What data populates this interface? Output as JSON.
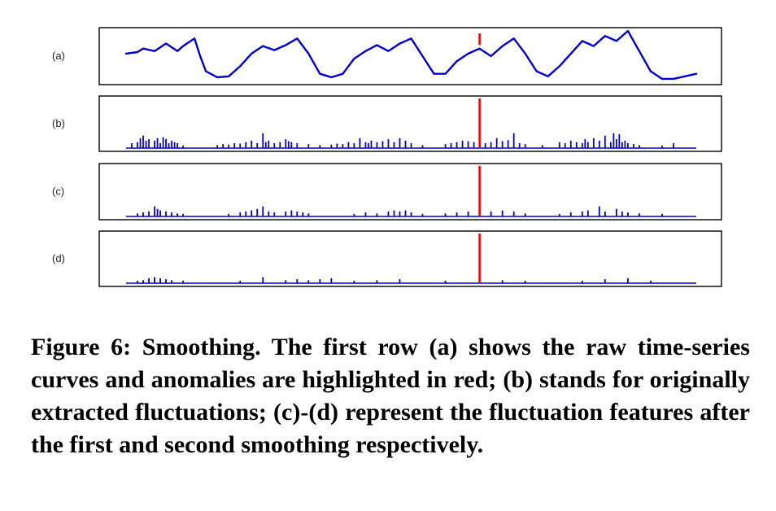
{
  "caption": "Figure 6: Smoothing. The first row (a) shows the raw time-series curves and anomalies are highlighted in red; (b) stands for originally extracted fluctuations; (c)-(d) represent the fluctuation features after the first and second smoothing respectively.",
  "colors": {
    "series": "#0000cc",
    "anomaly": "#ff0000",
    "frame": "#000000"
  },
  "chart_data": [
    {
      "type": "line",
      "panel_label": "(a)",
      "series": [
        {
          "x": [
            0,
            2,
            3,
            5,
            7,
            9,
            10,
            12,
            13,
            14,
            16,
            18,
            20,
            22,
            24,
            26,
            28,
            30,
            32,
            34,
            36,
            38,
            40,
            42,
            44,
            46,
            48,
            50,
            52,
            54,
            56,
            58,
            60,
            62,
            64,
            66,
            68,
            70,
            72,
            74,
            76,
            78,
            80,
            82,
            84,
            86,
            88,
            90,
            92,
            94,
            96,
            98,
            100
          ],
          "y": [
            0.55,
            0.58,
            0.65,
            0.6,
            0.75,
            0.6,
            0.7,
            0.85,
            0.5,
            0.2,
            0.08,
            0.1,
            0.3,
            0.55,
            0.7,
            0.62,
            0.72,
            0.85,
            0.55,
            0.15,
            0.08,
            0.15,
            0.45,
            0.6,
            0.72,
            0.6,
            0.75,
            0.85,
            0.5,
            0.15,
            0.15,
            0.4,
            0.55,
            0.65,
            0.5,
            0.7,
            0.85,
            0.55,
            0.2,
            0.1,
            0.3,
            0.55,
            0.8,
            0.7,
            0.9,
            0.8,
            1.0,
            0.6,
            0.2,
            0.05,
            0.05,
            0.1,
            0.15
          ]
        }
      ],
      "anomalies": [
        {
          "x": 62,
          "y": 0.95
        }
      ]
    },
    {
      "type": "bar",
      "panel_label": "(b)",
      "x": [
        1,
        2,
        2.5,
        3,
        3.5,
        4,
        5,
        5.5,
        6,
        6.5,
        7,
        7.5,
        8,
        8.5,
        9,
        10,
        16,
        17,
        18,
        19,
        20,
        21,
        22,
        23,
        24,
        24.5,
        25,
        26,
        27,
        28,
        28.5,
        29,
        30,
        32,
        34,
        36,
        37,
        38,
        39,
        40,
        41,
        42,
        42.5,
        43,
        44,
        45,
        46,
        47,
        48,
        49,
        50,
        52,
        56,
        57,
        58,
        59,
        60,
        61,
        62,
        63,
        64,
        65,
        66,
        67,
        68,
        69,
        70,
        73,
        76,
        77,
        78,
        79,
        80,
        80.5,
        81,
        82,
        83,
        84,
        85,
        85.5,
        86,
        86.5,
        87,
        87.5,
        88,
        89,
        90,
        94,
        96
      ],
      "values": [
        0.1,
        0.12,
        0.2,
        0.25,
        0.15,
        0.18,
        0.15,
        0.2,
        0.1,
        0.22,
        0.18,
        0.1,
        0.15,
        0.12,
        0.1,
        0.05,
        0.06,
        0.08,
        0.07,
        0.1,
        0.09,
        0.12,
        0.15,
        0.1,
        0.3,
        0.12,
        0.15,
        0.1,
        0.12,
        0.18,
        0.14,
        0.12,
        0.1,
        0.08,
        0.06,
        0.07,
        0.09,
        0.08,
        0.12,
        0.1,
        0.2,
        0.12,
        0.1,
        0.15,
        0.12,
        0.14,
        0.18,
        0.12,
        0.2,
        0.15,
        0.1,
        0.06,
        0.08,
        0.1,
        0.12,
        0.15,
        0.14,
        0.12,
        0.18,
        0.1,
        0.12,
        0.2,
        0.14,
        0.16,
        0.3,
        0.1,
        0.08,
        0.06,
        0.12,
        0.1,
        0.15,
        0.12,
        0.1,
        0.18,
        0.12,
        0.2,
        0.15,
        0.25,
        0.12,
        0.3,
        0.18,
        0.28,
        0.12,
        0.15,
        0.1,
        0.08,
        0.06,
        0.05,
        0.1
      ],
      "anomalies": [
        {
          "x": 62,
          "value": 1.0
        }
      ]
    },
    {
      "type": "bar",
      "panel_label": "(c)",
      "x": [
        2,
        3,
        4,
        5,
        5.5,
        6,
        7,
        8,
        9,
        10,
        18,
        20,
        21,
        22,
        23,
        24,
        25,
        26,
        28,
        29,
        30,
        31,
        32,
        40,
        42,
        44,
        46,
        47,
        48,
        49,
        50,
        52,
        56,
        58,
        60,
        62,
        64,
        66,
        68,
        70,
        76,
        78,
        80,
        81,
        83,
        84,
        86,
        87,
        88,
        90,
        94
      ],
      "values": [
        0.06,
        0.08,
        0.1,
        0.2,
        0.15,
        0.12,
        0.1,
        0.08,
        0.06,
        0.05,
        0.05,
        0.08,
        0.1,
        0.12,
        0.15,
        0.2,
        0.1,
        0.08,
        0.1,
        0.12,
        0.1,
        0.08,
        0.06,
        0.05,
        0.08,
        0.06,
        0.1,
        0.12,
        0.1,
        0.12,
        0.08,
        0.05,
        0.06,
        0.08,
        0.1,
        0.08,
        0.1,
        0.12,
        0.1,
        0.06,
        0.05,
        0.08,
        0.1,
        0.12,
        0.2,
        0.1,
        0.15,
        0.1,
        0.08,
        0.06,
        0.05
      ],
      "anomalies": [
        {
          "x": 62,
          "value": 1.0
        }
      ]
    },
    {
      "type": "bar",
      "panel_label": "(d)",
      "x": [
        2,
        3,
        4,
        5,
        6,
        7,
        8,
        10,
        20,
        24,
        28,
        30,
        32,
        34,
        36,
        40,
        44,
        48,
        56,
        62,
        66,
        70,
        80,
        84,
        88,
        92
      ],
      "values": [
        0.05,
        0.06,
        0.1,
        0.12,
        0.1,
        0.08,
        0.06,
        0.05,
        0.05,
        0.12,
        0.06,
        0.08,
        0.06,
        0.08,
        0.1,
        0.05,
        0.06,
        0.08,
        0.05,
        0.06,
        0.06,
        0.05,
        0.05,
        0.08,
        0.1,
        0.05
      ],
      "anomalies": [
        {
          "x": 62,
          "value": 1.0
        }
      ]
    }
  ]
}
